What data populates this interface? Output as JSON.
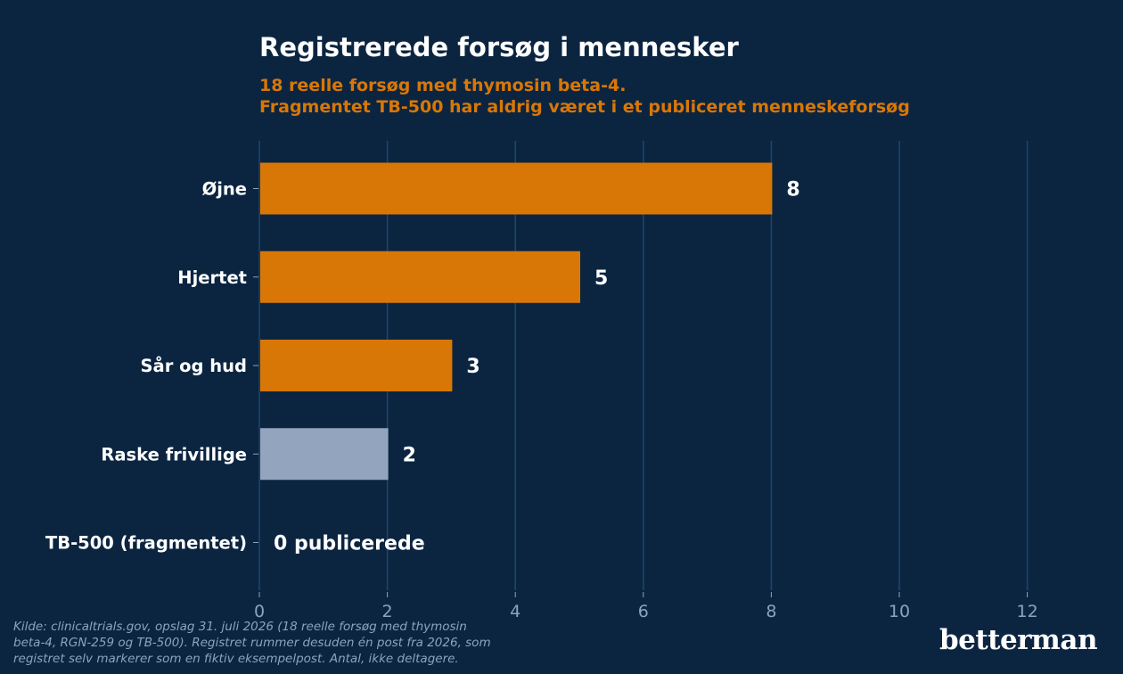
{
  "header": {
    "title": "Registrerede forsøg i mennesker",
    "subtitle_line1": "18 reelle forsøg med thymosin beta-4.",
    "subtitle_line2": "Fragmentet TB-500 har aldrig været i et publiceret menneskeforsøg"
  },
  "footer": {
    "source_line1": "Kilde: clinicaltrials.gov, opslag 31. juli 2026 (18 reelle forsøg med thymosin",
    "source_line2": "beta-4, RGN-259 og TB-500). Registret rummer desuden én post fra 2026, som",
    "source_line3": "registret selv markerer som en fiktiv eksempelpost. Antal, ikke deltagere.",
    "brand": "betterman"
  },
  "colors": {
    "background": "#0b2541",
    "accent": "#d97706",
    "muted_bar": "#93a5be",
    "grid": "#1e4468",
    "tick_text": "#8da2bd",
    "text": "#ffffff"
  },
  "chart_data": {
    "type": "bar",
    "orientation": "horizontal",
    "categories": [
      "Øjne",
      "Hjertet",
      "Sår og hud",
      "Raske frivillige",
      "TB-500 (fragmentet)"
    ],
    "values": [
      8,
      5,
      3,
      2,
      0
    ],
    "value_labels": [
      "8",
      "5",
      "3",
      "2",
      "0 publicerede"
    ],
    "bar_colors": [
      "#d97706",
      "#d97706",
      "#d97706",
      "#93a5be",
      "#93a5be"
    ],
    "xlim": [
      0,
      13
    ],
    "xticks": [
      0,
      2,
      4,
      6,
      8,
      10,
      12
    ],
    "grid": true,
    "grid_axis": "x",
    "legend": "none"
  }
}
